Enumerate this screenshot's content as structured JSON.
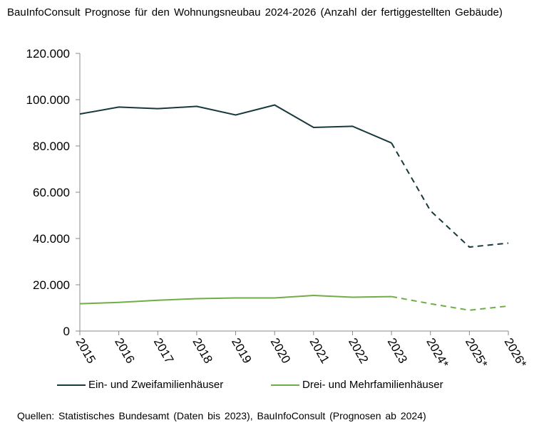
{
  "chart_data": {
    "type": "line",
    "title": "BauInfoConsult Prognose für den Wohnungsneubau 2024-2026 (Anzahl der fertiggestellten Gebäude)",
    "categories": [
      "2015",
      "2016",
      "2017",
      "2018",
      "2019",
      "2020",
      "2021",
      "2022",
      "2023",
      "2024*",
      "2025*",
      "2026*"
    ],
    "ylim": [
      0,
      120000
    ],
    "yticks": [
      "0",
      "20.000",
      "40.000",
      "60.000",
      "80.000",
      "100.000",
      "120.000"
    ],
    "ytick_values": [
      0,
      20000,
      40000,
      60000,
      80000,
      100000,
      120000
    ],
    "grid": false,
    "legend_position": "bottom",
    "forecast_from": "2023",
    "series": [
      {
        "name": "Ein- und Zweifamilienhäuser",
        "color": "#17393b",
        "values": [
          93800,
          96800,
          96100,
          97100,
          93400,
          97700,
          88000,
          88500,
          81300,
          52000,
          36300,
          38000
        ]
      },
      {
        "name": "Drei- und Mehrfamilienhäuser",
        "color": "#70ad47",
        "values": [
          11800,
          12400,
          13300,
          14000,
          14300,
          14300,
          15400,
          14600,
          14900,
          11800,
          9000,
          10800
        ]
      }
    ],
    "source": "Quellen:  Statistisches Bundesamt  (Daten bis 2023), BauInfoConsult  (Prognosen ab 2024)"
  }
}
